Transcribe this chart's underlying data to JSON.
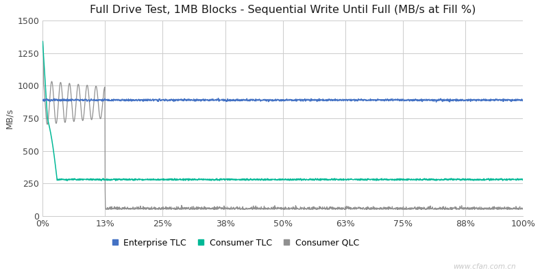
{
  "title": "Full Drive Test, 1MB Blocks - Sequential Write Until Full (MB/s at Fill %)",
  "ylabel": "MB/s",
  "xlim": [
    0,
    100
  ],
  "ylim": [
    0,
    1500
  ],
  "yticks": [
    0,
    250,
    500,
    750,
    1000,
    1250,
    1500
  ],
  "xtick_labels": [
    "0%",
    "13%",
    "25%",
    "38%",
    "50%",
    "63%",
    "75%",
    "88%",
    "100%"
  ],
  "xtick_positions": [
    0,
    13,
    25,
    38,
    50,
    63,
    75,
    88,
    100
  ],
  "colors": {
    "enterprise_tlc": "#4472C4",
    "consumer_tlc": "#00B896",
    "consumer_qlc": "#909090"
  },
  "legend_labels": [
    "Enterprise TLC",
    "Consumer TLC",
    "Consumer QLC"
  ],
  "background_color": "#FFFFFF",
  "grid_color": "#CCCCCC",
  "title_fontsize": 11.5,
  "watermark": "www.cfan.com.cn"
}
